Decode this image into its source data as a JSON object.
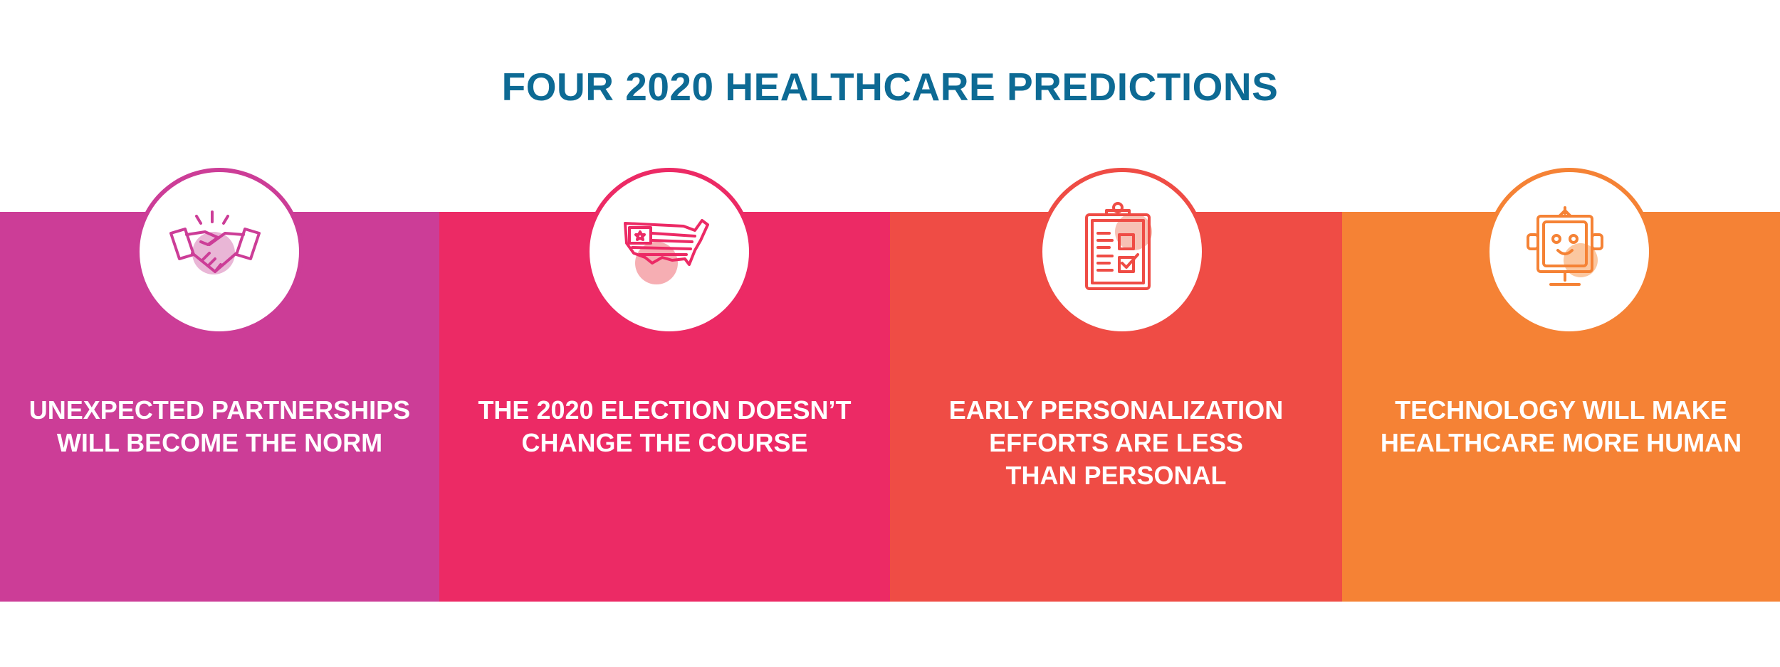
{
  "title": "FOUR 2020 HEALTHCARE PREDICTIONS",
  "predictions": [
    {
      "label": "UNEXPECTED PARTNERSHIPS\nWILL BECOME THE NORM",
      "icon": "handshake-icon",
      "color": "#cc3d97"
    },
    {
      "label": "THE 2020 ELECTION DOESN’T\nCHANGE THE COURSE",
      "icon": "us-map-flag-icon",
      "color": "#ec2a65"
    },
    {
      "label": "EARLY PERSONALIZATION\nEFFORTS ARE LESS\nTHAN PERSONAL",
      "icon": "clipboard-checklist-icon",
      "color": "#ef4c45"
    },
    {
      "label": "TECHNOLOGY WILL MAKE\nHEALTHCARE MORE HUMAN",
      "icon": "robot-icon",
      "color": "#f58235"
    }
  ]
}
